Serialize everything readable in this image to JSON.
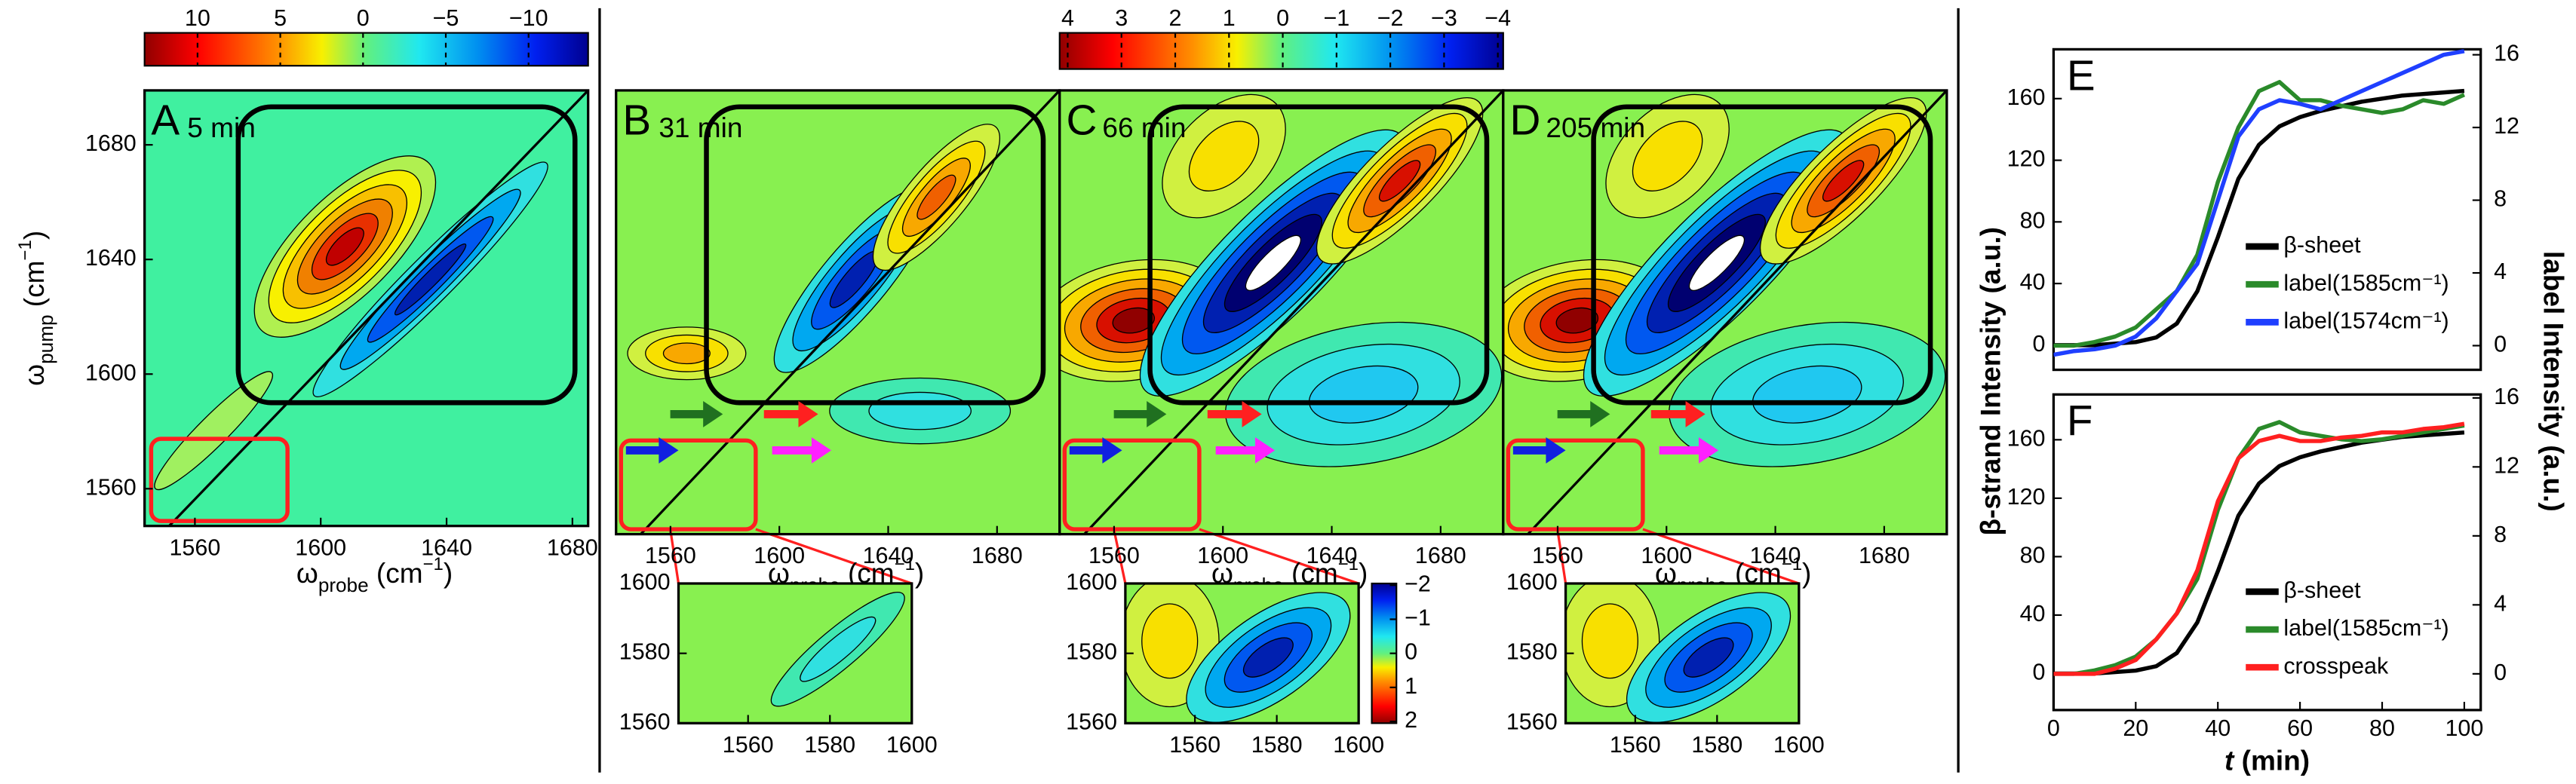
{
  "chart_data": [
    {
      "type": "contour",
      "panel": "A",
      "annotation": "5 min",
      "xlim": [
        1544,
        1685
      ],
      "ylim": [
        1547,
        1699
      ],
      "xticks": [
        1560,
        1600,
        1640,
        1680
      ],
      "yticks": [
        1560,
        1600,
        1640,
        1680
      ],
      "x_label": {
        "symbol": "ω",
        "sub": "probe",
        "unit": " (cm",
        "sup": "−1",
        "close": ")"
      },
      "y_label": {
        "symbol": "ω",
        "sub": "pump",
        "unit": " (cm",
        "sup": "−1",
        "close": ")"
      },
      "colorbar": {
        "lim": [
          13.2,
          -13.6
        ],
        "ticks": [
          10,
          5,
          0,
          {
            "value": -5,
            "label": "−5"
          },
          {
            "value": -10,
            "label": "−10"
          }
        ]
      }
    },
    {
      "type": "colorbar",
      "lim": [
        4.15,
        -4.1
      ],
      "ticks": [
        4,
        3,
        2,
        1,
        0,
        {
          "value": -1,
          "label": "−1"
        },
        {
          "value": -2,
          "label": "−2"
        },
        {
          "value": -3,
          "label": "−3"
        },
        {
          "value": -4,
          "label": "−4"
        }
      ]
    },
    {
      "type": "contour",
      "panel": "B",
      "annotation": "31 min",
      "xlim": [
        1540,
        1703
      ],
      "ylim": [
        1546,
        1699
      ],
      "xticks": [
        1560,
        1600,
        1640,
        1680
      ],
      "x_label": {
        "symbol": "ω",
        "sub": "probe",
        "unit": " (cm",
        "sup": "−1",
        "close": ")"
      }
    },
    {
      "type": "contour",
      "panel": "C",
      "annotation": "66 min",
      "xlim": [
        1540,
        1703
      ],
      "ylim": [
        1546,
        1699
      ],
      "xticks": [
        1560,
        1600,
        1640,
        1680
      ],
      "x_label": {
        "symbol": "ω",
        "sub": "probe",
        "unit": " (cm",
        "sup": "−1",
        "close": ")"
      }
    },
    {
      "type": "contour",
      "panel": "D",
      "annotation": "205 min",
      "xlim": [
        1540,
        1703
      ],
      "ylim": [
        1546,
        1699
      ],
      "xticks": [
        1560,
        1600,
        1640,
        1680
      ],
      "x_label": {
        "symbol": "ω",
        "sub": "probe",
        "unit": " (cm",
        "sup": "−1",
        "close": ")"
      }
    },
    {
      "type": "contour",
      "xlim": [
        1543,
        1600
      ],
      "ylim": [
        1560,
        1600
      ],
      "xticks": [
        1560,
        1580,
        1600
      ],
      "yticks": [
        1560,
        1580,
        1600
      ]
    },
    {
      "type": "contour",
      "xlim": [
        1543,
        1600
      ],
      "ylim": [
        1560,
        1600
      ],
      "xticks": [
        1560,
        1580,
        1600
      ],
      "yticks": [
        1560,
        1580,
        1600
      ]
    },
    {
      "type": "colorbar",
      "lim": [
        -2.05,
        2.05
      ],
      "ticks": [
        {
          "value": -2,
          "label": "−2"
        },
        {
          "value": -1,
          "label": "−1"
        },
        0,
        1,
        2
      ]
    },
    {
      "type": "contour",
      "xlim": [
        1543,
        1600
      ],
      "ylim": [
        1560,
        1600
      ],
      "xticks": [
        1560,
        1580,
        1600
      ],
      "yticks": [
        1560,
        1580,
        1600
      ]
    },
    {
      "type": "line",
      "panel": "E",
      "xlim": [
        0,
        104
      ],
      "ylim": [
        -16,
        192
      ],
      "y2lim": [
        -1.33,
        16.3
      ],
      "yticks": [
        0,
        40,
        80,
        120,
        160
      ],
      "y2ticks": [
        0,
        4,
        8,
        12,
        16
      ],
      "y_label": "β-strand Intensity (a.u.)",
      "y2_label": "label Intensity (a.u.)",
      "x": [
        0,
        5,
        10,
        15,
        20,
        25,
        30,
        35,
        40,
        45,
        50,
        55,
        60,
        65,
        70,
        75,
        80,
        85,
        90,
        95,
        100
      ],
      "series": [
        {
          "name": "β-sheet",
          "color": "#000000",
          "axis": "y",
          "values": [
            0,
            0,
            0,
            1,
            2,
            5,
            14,
            35,
            70,
            108,
            130,
            142,
            148,
            152,
            155,
            158,
            160,
            162,
            163,
            164,
            165
          ]
        },
        {
          "name": "label(1585cm⁻¹)",
          "color": "#2a8a2a",
          "axis": "y2",
          "values": [
            0,
            0,
            0.2,
            0.5,
            1,
            2,
            3,
            5,
            9,
            12,
            14,
            14.5,
            13.5,
            13.5,
            13.2,
            13,
            12.8,
            13,
            13.5,
            13.3,
            13.8
          ]
        },
        {
          "name": "label(1574cm⁻¹)",
          "color": "#1f3fff",
          "axis": "y2",
          "values": [
            -0.5,
            -0.3,
            -0.2,
            0,
            0.5,
            1.5,
            3,
            4.5,
            8,
            11.5,
            13,
            13.5,
            13.3,
            13,
            13.5,
            14,
            14.5,
            15,
            15.5,
            16,
            16.2
          ]
        }
      ]
    },
    {
      "type": "line",
      "panel": "F",
      "xlim": [
        0,
        104
      ],
      "ylim": [
        -25,
        191
      ],
      "y2lim": [
        -2.1,
        16.2
      ],
      "xticks": [
        0,
        20,
        40,
        60,
        80,
        100
      ],
      "yticks": [
        0,
        40,
        80,
        120,
        160
      ],
      "y2ticks": [
        0,
        4,
        8,
        12,
        16
      ],
      "x_label": {
        "var": "t",
        "unit": " (min)"
      },
      "x": [
        0,
        5,
        10,
        15,
        20,
        25,
        30,
        35,
        40,
        45,
        50,
        55,
        60,
        65,
        70,
        75,
        80,
        85,
        90,
        95,
        100
      ],
      "series": [
        {
          "name": "β-sheet",
          "color": "#000000",
          "axis": "y",
          "values": [
            0,
            0,
            0,
            1,
            2,
            5,
            14,
            35,
            70,
            108,
            130,
            142,
            148,
            152,
            155,
            158,
            160,
            162,
            163,
            164,
            165
          ]
        },
        {
          "name": "label(1585cm⁻¹)",
          "color": "#2a8a2a",
          "axis": "y2",
          "values": [
            0,
            0,
            0.2,
            0.5,
            1,
            2,
            3.5,
            5.5,
            9.5,
            12.5,
            14.2,
            14.6,
            14,
            13.8,
            13.6,
            13.5,
            13.6,
            13.8,
            14,
            14.2,
            14.4
          ]
        },
        {
          "name": "crosspeak",
          "color": "#ff2020",
          "axis": "y2",
          "values": [
            0,
            0,
            0,
            0.3,
            0.8,
            2,
            3.5,
            6,
            10,
            12.5,
            13.5,
            13.8,
            13.5,
            13.5,
            13.7,
            13.8,
            14,
            14,
            14.2,
            14.3,
            14.5
          ]
        }
      ]
    }
  ]
}
